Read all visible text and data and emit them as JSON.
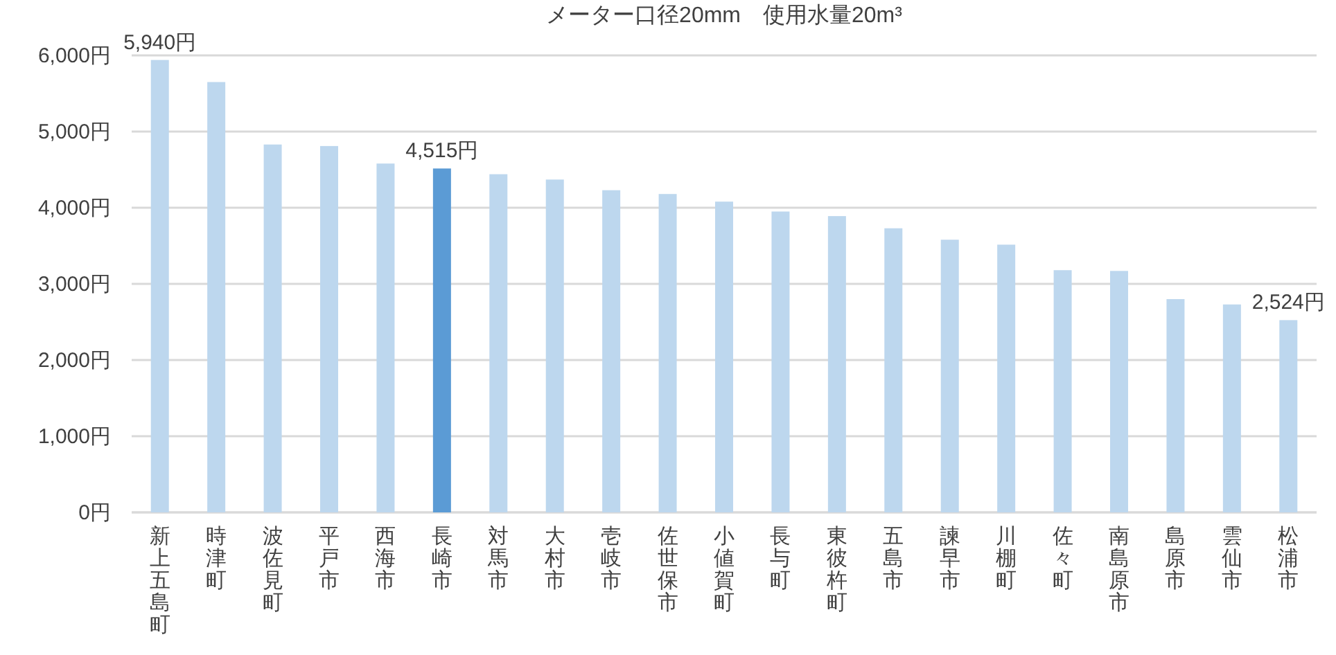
{
  "chart_data": {
    "type": "bar",
    "title": "メーター口径20mm　使用水量20m³",
    "categories": [
      "新上五島町",
      "時津町",
      "波佐見町",
      "平戸市",
      "西海市",
      "長崎市",
      "対馬市",
      "大村市",
      "壱岐市",
      "佐世保市",
      "小値賀町",
      "長与町",
      "東彼杵町",
      "五島市",
      "諫早市",
      "川棚町",
      "佐々町",
      "南島原市",
      "島原市",
      "雲仙市",
      "松浦市"
    ],
    "values": [
      5940,
      5650,
      4830,
      4810,
      4580,
      4515,
      4440,
      4370,
      4230,
      4180,
      4080,
      3950,
      3890,
      3730,
      3580,
      3515,
      3180,
      3170,
      2800,
      2730,
      2524
    ],
    "colors": [
      "#bdd7ee",
      "#bdd7ee",
      "#bdd7ee",
      "#bdd7ee",
      "#bdd7ee",
      "#5b9bd5",
      "#bdd7ee",
      "#bdd7ee",
      "#bdd7ee",
      "#bdd7ee",
      "#bdd7ee",
      "#bdd7ee",
      "#bdd7ee",
      "#bdd7ee",
      "#bdd7ee",
      "#bdd7ee",
      "#bdd7ee",
      "#bdd7ee",
      "#bdd7ee",
      "#bdd7ee",
      "#bdd7ee"
    ],
    "value_labels": [
      "5,940円",
      null,
      null,
      null,
      null,
      "4,515円",
      null,
      null,
      null,
      null,
      null,
      null,
      null,
      null,
      null,
      null,
      null,
      null,
      null,
      null,
      "2,524円"
    ],
    "ylim": [
      0,
      6000
    ],
    "yticks": [
      {
        "value": 0,
        "label": "0円"
      },
      {
        "value": 1000,
        "label": "1,000円"
      },
      {
        "value": 2000,
        "label": "2,000円"
      },
      {
        "value": 3000,
        "label": "3,000円"
      },
      {
        "value": 4000,
        "label": "4,000円"
      },
      {
        "value": 5000,
        "label": "5,000円"
      },
      {
        "value": 6000,
        "label": "6,000円"
      }
    ],
    "grid": "y"
  }
}
